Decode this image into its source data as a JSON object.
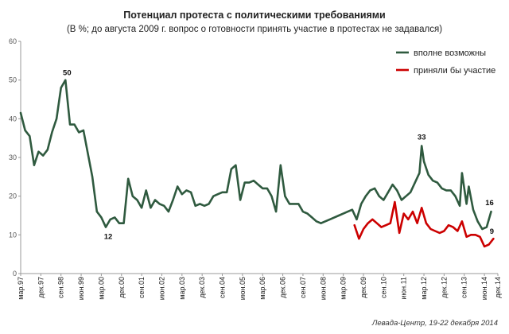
{
  "chart_data": {
    "type": "line",
    "title": "Потенциал протеста с политическими требованиями",
    "subtitle": "(В %; до августа 2009 г. вопрос о готовности принять участие в протестах не задавался)",
    "source": "Левада-Центр, 19-22 декабря 2014",
    "ylim": [
      0,
      60
    ],
    "yticks": [
      0,
      10,
      20,
      30,
      40,
      50,
      60
    ],
    "grid": false,
    "legend_position": "top-right",
    "x_tick_labels": [
      "мар.97",
      "дек.97",
      "сен.98",
      "июн.99",
      "мар.00",
      "дек.00",
      "сен.01",
      "июн.02",
      "мар.03",
      "дек.03",
      "сен.04",
      "июн.05",
      "мар.06",
      "дек.06",
      "сен.07",
      "июн.08",
      "мар.09",
      "дек.09",
      "сен.10",
      "июн.11",
      "мар.12",
      "дек.12",
      "сен.13",
      "июн.14",
      "дек.14"
    ],
    "series": [
      {
        "name": "вполне возможны",
        "color": "#2f5a3f",
        "points": [
          [
            "1997-03",
            41.5
          ],
          [
            "1997-05",
            37
          ],
          [
            "1997-07",
            35.5
          ],
          [
            "1997-09",
            28
          ],
          [
            "1997-11",
            31.5
          ],
          [
            "1998-01",
            30.5
          ],
          [
            "1998-03",
            32
          ],
          [
            "1998-05",
            36.5
          ],
          [
            "1998-07",
            40
          ],
          [
            "1998-09",
            48
          ],
          [
            "1998-11",
            50
          ],
          [
            "1999-01",
            38.5
          ],
          [
            "1999-03",
            38.5
          ],
          [
            "1999-05",
            36.5
          ],
          [
            "1999-07",
            37
          ],
          [
            "1999-09",
            31
          ],
          [
            "1999-11",
            25
          ],
          [
            "2000-01",
            16
          ],
          [
            "2000-03",
            14.5
          ],
          [
            "2000-05",
            12
          ],
          [
            "2000-07",
            14
          ],
          [
            "2000-09",
            14.5
          ],
          [
            "2000-11",
            13
          ],
          [
            "2001-01",
            13
          ],
          [
            "2001-03",
            24.5
          ],
          [
            "2001-05",
            20
          ],
          [
            "2001-07",
            19
          ],
          [
            "2001-09",
            17
          ],
          [
            "2001-11",
            21.5
          ],
          [
            "2002-01",
            17
          ],
          [
            "2002-03",
            19
          ],
          [
            "2002-05",
            18
          ],
          [
            "2002-07",
            17.5
          ],
          [
            "2002-09",
            16
          ],
          [
            "2002-11",
            19
          ],
          [
            "2003-01",
            22.5
          ],
          [
            "2003-03",
            20.5
          ],
          [
            "2003-05",
            21.5
          ],
          [
            "2003-07",
            21
          ],
          [
            "2003-09",
            17.5
          ],
          [
            "2003-11",
            18
          ],
          [
            "2004-01",
            17.5
          ],
          [
            "2004-03",
            18
          ],
          [
            "2004-05",
            20
          ],
          [
            "2004-07",
            20.5
          ],
          [
            "2004-09",
            21
          ],
          [
            "2004-11",
            21
          ],
          [
            "2005-01",
            27
          ],
          [
            "2005-03",
            28
          ],
          [
            "2005-05",
            19
          ],
          [
            "2005-07",
            23.5
          ],
          [
            "2005-09",
            23.5
          ],
          [
            "2005-11",
            24
          ],
          [
            "2006-01",
            23
          ],
          [
            "2006-03",
            22
          ],
          [
            "2006-05",
            22
          ],
          [
            "2006-07",
            20
          ],
          [
            "2006-09",
            16
          ],
          [
            "2006-11",
            28
          ],
          [
            "2007-01",
            20
          ],
          [
            "2007-03",
            18
          ],
          [
            "2007-05",
            18
          ],
          [
            "2007-07",
            18
          ],
          [
            "2007-09",
            16
          ],
          [
            "2007-11",
            15.5
          ],
          [
            "2008-01",
            14.5
          ],
          [
            "2008-03",
            13.5
          ],
          [
            "2008-05",
            13
          ],
          [
            "2008-07",
            13.5
          ],
          [
            "2008-09",
            14
          ],
          [
            "2008-11",
            14.5
          ],
          [
            "2009-01",
            15
          ],
          [
            "2009-03",
            15.5
          ],
          [
            "2009-05",
            16
          ],
          [
            "2009-07",
            16.5
          ],
          [
            "2009-09",
            14
          ],
          [
            "2009-11",
            18
          ],
          [
            "2010-01",
            20
          ],
          [
            "2010-03",
            21.5
          ],
          [
            "2010-05",
            22
          ],
          [
            "2010-07",
            20
          ],
          [
            "2010-09",
            19
          ],
          [
            "2010-11",
            21
          ],
          [
            "2011-01",
            23
          ],
          [
            "2011-03",
            21.5
          ],
          [
            "2011-05",
            19
          ],
          [
            "2011-07",
            20
          ],
          [
            "2011-09",
            21
          ],
          [
            "2011-11",
            23.5
          ],
          [
            "2012-01",
            26
          ],
          [
            "2012-02",
            33
          ],
          [
            "2012-03",
            29
          ],
          [
            "2012-05",
            25.5
          ],
          [
            "2012-07",
            24
          ],
          [
            "2012-09",
            23.5
          ],
          [
            "2012-11",
            22
          ],
          [
            "2013-01",
            21.5
          ],
          [
            "2013-03",
            21.5
          ],
          [
            "2013-05",
            20
          ],
          [
            "2013-07",
            17.5
          ],
          [
            "2013-08",
            26
          ],
          [
            "2013-10",
            18
          ],
          [
            "2013-11",
            22.5
          ],
          [
            "2014-01",
            16.5
          ],
          [
            "2014-03",
            13.5
          ],
          [
            "2014-05",
            11.5
          ],
          [
            "2014-07",
            12
          ],
          [
            "2014-09",
            16
          ]
        ]
      },
      {
        "name": "приняли бы участие",
        "color": "#cc0000",
        "points": [
          [
            "2009-08",
            12.5
          ],
          [
            "2009-10",
            9
          ],
          [
            "2009-12",
            11.5
          ],
          [
            "2010-02",
            13
          ],
          [
            "2010-04",
            14
          ],
          [
            "2010-06",
            13
          ],
          [
            "2010-08",
            12
          ],
          [
            "2010-10",
            12.5
          ],
          [
            "2010-12",
            13
          ],
          [
            "2011-02",
            18.5
          ],
          [
            "2011-04",
            10.5
          ],
          [
            "2011-06",
            15.5
          ],
          [
            "2011-08",
            14
          ],
          [
            "2011-10",
            16
          ],
          [
            "2011-12",
            13
          ],
          [
            "2012-02",
            17
          ],
          [
            "2012-04",
            13
          ],
          [
            "2012-06",
            11.5
          ],
          [
            "2012-08",
            11
          ],
          [
            "2012-10",
            10.5
          ],
          [
            "2012-12",
            11
          ],
          [
            "2013-02",
            12.5
          ],
          [
            "2013-04",
            12
          ],
          [
            "2013-06",
            11
          ],
          [
            "2013-08",
            13.5
          ],
          [
            "2013-10",
            9.5
          ],
          [
            "2013-12",
            10
          ],
          [
            "2014-02",
            10
          ],
          [
            "2014-04",
            9.5
          ],
          [
            "2014-06",
            7
          ],
          [
            "2014-08",
            7.5
          ],
          [
            "2014-10",
            9
          ]
        ]
      }
    ],
    "annotations": [
      {
        "text": "50",
        "x": "1998-11",
        "y": 50
      },
      {
        "text": "12",
        "x": "2000-05",
        "y": 12
      },
      {
        "text": "33",
        "x": "2012-02",
        "y": 33
      },
      {
        "text": "16",
        "x": "2014-09",
        "y": 16
      },
      {
        "text": "9",
        "x": "2014-10",
        "y": 9
      }
    ]
  }
}
